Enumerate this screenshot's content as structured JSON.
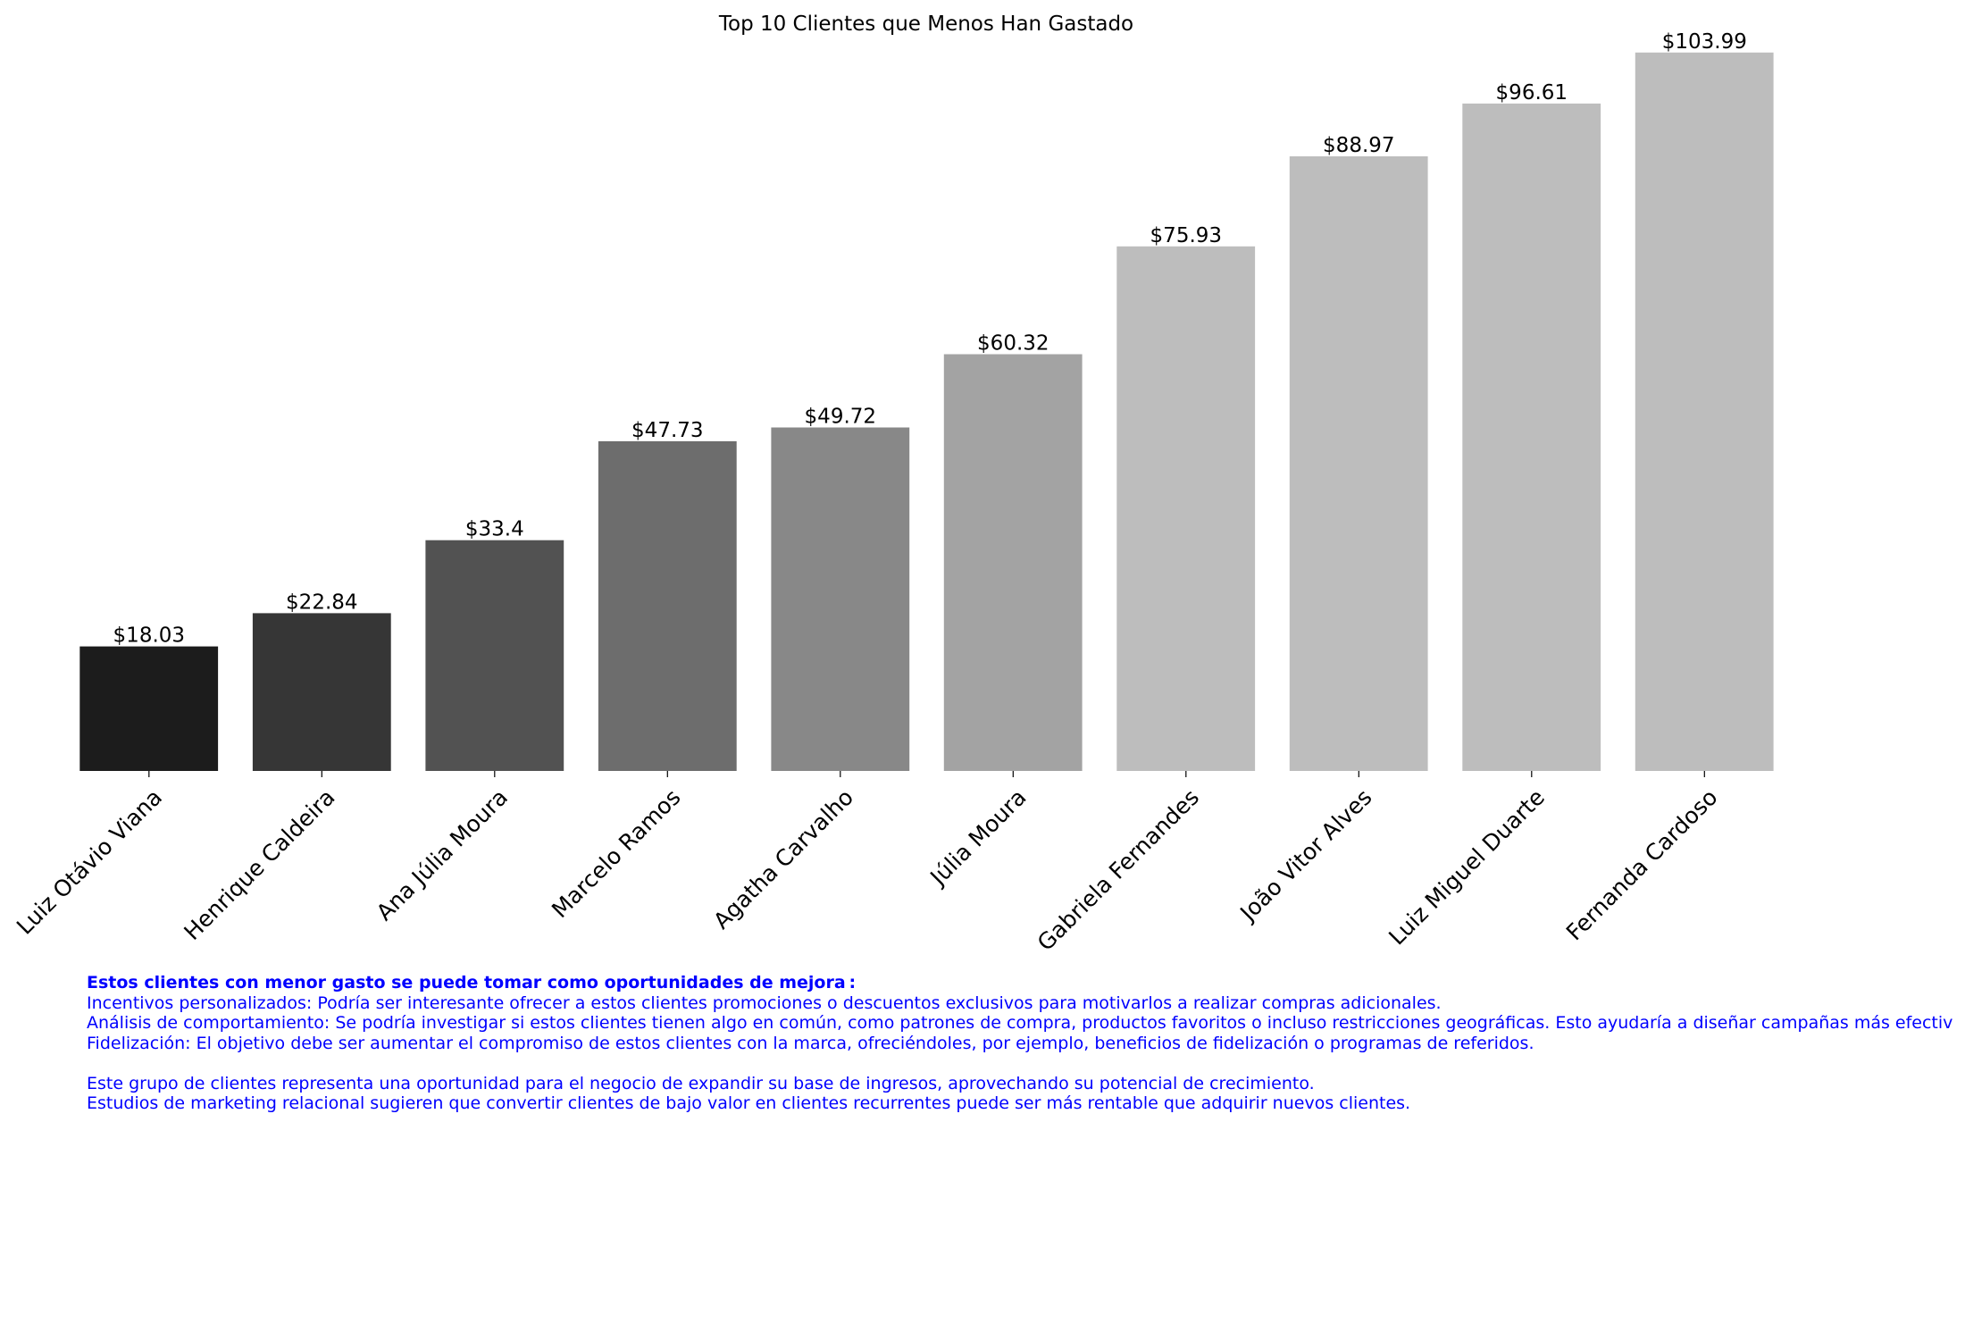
{
  "colors": {
    "notes_text": "#0000ff",
    "title_text": "#000000"
  },
  "chart_data": {
    "type": "bar",
    "title": "Top 10 Clientes que Menos Han Gastado",
    "xlabel": "",
    "ylabel": "",
    "ylim": [
      0,
      105
    ],
    "grid": false,
    "categories": [
      "Luiz Otávio Viana",
      "Henrique Caldeira",
      "Ana Júlia Moura",
      "Marcelo Ramos",
      "Agatha Carvalho",
      "Júlia Moura",
      "Gabriela Fernandes",
      "João Vitor Alves",
      "Luiz Miguel Duarte",
      "Fernanda Cardoso"
    ],
    "values": [
      18.03,
      22.84,
      33.4,
      47.73,
      49.72,
      60.32,
      75.93,
      88.97,
      96.61,
      103.99
    ],
    "value_labels": [
      "$18.03",
      "$22.84",
      "$33.4",
      "$47.73",
      "$49.72",
      "$60.32",
      "$75.93",
      "$88.97",
      "$96.61",
      "$103.99"
    ],
    "bar_colors": [
      "#1c1c1c",
      "#363636",
      "#525252",
      "#6d6d6d",
      "#888888",
      "#a3a3a3",
      "#bdbdbd",
      "#bdbdbd",
      "#bdbdbd",
      "#bdbdbd"
    ]
  },
  "notes": {
    "heading": "Estos clientes con menor gasto se puede tomar como oportunidades de mejora :",
    "line1": "Incentivos personalizados: Podría ser interesante ofrecer a estos clientes promociones o descuentos exclusivos para motivarlos a realizar compras adicionales.",
    "line2": "Análisis de comportamiento: Se podría investigar si estos clientes tienen algo en común, como patrones de compra, productos favoritos o incluso restricciones geográficas. Esto ayudaría a diseñar campañas más efectivas.",
    "line3": "Fidelización: El objetivo debe ser aumentar el compromiso de estos clientes con la marca, ofreciéndoles, por ejemplo, beneficios de fidelización o programas de referidos.",
    "line4": "Este grupo de clientes representa una oportunidad para el negocio de expandir su base de ingresos, aprovechando su potencial de crecimiento.",
    "line5": "Estudios de marketing relacional sugieren que convertir clientes de bajo valor en clientes recurrentes puede ser más rentable que adquirir nuevos clientes."
  }
}
